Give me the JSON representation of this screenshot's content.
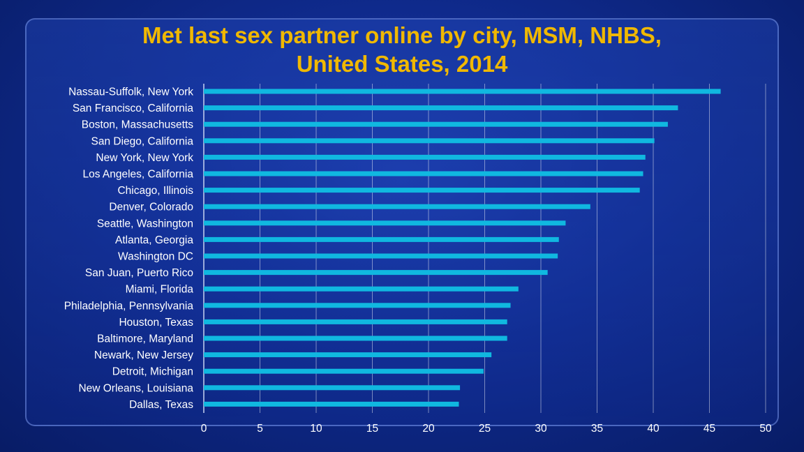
{
  "chart_data": {
    "type": "bar",
    "orientation": "horizontal",
    "title_lines": [
      "Met last sex partner online by city, MSM, NHBS,",
      "United States, 2014"
    ],
    "categories": [
      "Nassau-Suffolk, New York",
      "San Francisco, California",
      "Boston, Massachusetts",
      "San Diego, California",
      "New York, New York",
      "Los Angeles, California",
      "Chicago, Illinois",
      "Denver, Colorado",
      "Seattle, Washington",
      "Atlanta, Georgia",
      "Washington DC",
      "San Juan, Puerto Rico",
      "Miami, Florida",
      "Philadelphia, Pennsylvania",
      "Houston, Texas",
      "Baltimore, Maryland",
      "Newark, New Jersey",
      "Detroit, Michigan",
      "New Orleans, Louisiana",
      "Dallas, Texas"
    ],
    "values": [
      46,
      42.2,
      41.3,
      40.1,
      39.3,
      39.1,
      38.8,
      34.4,
      32.2,
      31.6,
      31.5,
      30.6,
      28,
      27.3,
      27,
      27,
      25.6,
      24.9,
      22.8,
      22.7
    ],
    "xlim": [
      0,
      50
    ],
    "xticks": [
      0,
      5,
      10,
      15,
      20,
      25,
      30,
      35,
      40,
      45,
      50
    ],
    "xlabel": "",
    "ylabel": "",
    "grid": "vertical",
    "bar_color": "#10b8e0",
    "legend": "none"
  }
}
